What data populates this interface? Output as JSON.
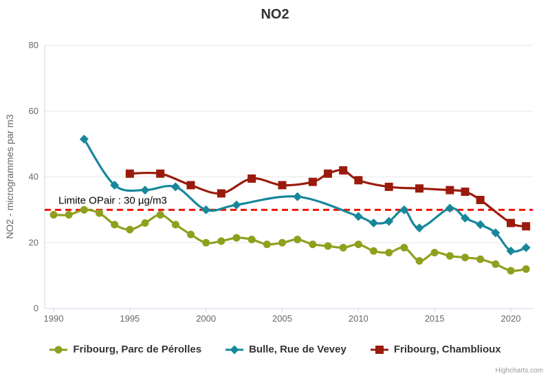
{
  "credits": "Highcharts.com",
  "chart_data": {
    "type": "line",
    "title": "NO2",
    "xlabel": "",
    "ylabel": "NO2 - microgrammes par m3",
    "ylim": [
      0,
      80
    ],
    "yticks": [
      0,
      20,
      40,
      60,
      80
    ],
    "xticks": [
      1990,
      1995,
      2000,
      2005,
      2010,
      2015,
      2020
    ],
    "x_range": [
      1990,
      2021
    ],
    "grid": true,
    "legend_position": "bottom",
    "grid_color": "#e6e6e6",
    "axis_color": "#ccd6eb",
    "label_color": "#666666",
    "plot_line": {
      "value": 30,
      "label": "Limite OPair : 30 µg/m3",
      "color": "#ee1407",
      "label_color": "#000000"
    },
    "series": [
      {
        "name": "Fribourg, Parc de Pérolles",
        "color": "#8fa01e",
        "marker": "circle",
        "points": [
          [
            1990,
            28.5
          ],
          [
            1991,
            28.5
          ],
          [
            1992,
            30
          ],
          [
            1993,
            29
          ],
          [
            1994,
            25.5
          ],
          [
            1995,
            24
          ],
          [
            1996,
            26
          ],
          [
            1997,
            28.5
          ],
          [
            1998,
            25.5
          ],
          [
            1999,
            22.5
          ],
          [
            2000,
            20
          ],
          [
            2001,
            20.5
          ],
          [
            2002,
            21.5
          ],
          [
            2003,
            21
          ],
          [
            2004,
            19.5
          ],
          [
            2005,
            20
          ],
          [
            2006,
            21
          ],
          [
            2007,
            19.5
          ],
          [
            2008,
            19
          ],
          [
            2009,
            18.5
          ],
          [
            2010,
            19.5
          ],
          [
            2011,
            17.5
          ],
          [
            2012,
            17
          ],
          [
            2013,
            18.5
          ],
          [
            2014,
            14.5
          ],
          [
            2015,
            17
          ],
          [
            2016,
            16
          ],
          [
            2017,
            15.5
          ],
          [
            2018,
            15
          ],
          [
            2019,
            13.5
          ],
          [
            2020,
            11.5
          ],
          [
            2021,
            12
          ]
        ]
      },
      {
        "name": "Bulle, Rue de Vevey",
        "color": "#17879b",
        "marker": "diamond",
        "points": [
          [
            1992,
            51.5
          ],
          [
            1994,
            37.5
          ],
          [
            1996,
            36
          ],
          [
            1998,
            37
          ],
          [
            2000,
            30
          ],
          [
            2002,
            31.5
          ],
          [
            2006,
            34
          ],
          [
            2010,
            28
          ],
          [
            2011,
            26
          ],
          [
            2012,
            26.5
          ],
          [
            2013,
            30
          ],
          [
            2014,
            24.5
          ],
          [
            2016,
            30.5
          ],
          [
            2017,
            27.5
          ],
          [
            2018,
            25.5
          ],
          [
            2019,
            23
          ],
          [
            2020,
            17.5
          ],
          [
            2021,
            18.5
          ]
        ]
      },
      {
        "name": "Fribourg, Chamblioux",
        "color": "#9a1b0c",
        "marker": "square",
        "points": [
          [
            1995,
            41
          ],
          [
            1997,
            41
          ],
          [
            1999,
            37.5
          ],
          [
            2001,
            35
          ],
          [
            2003,
            39.5
          ],
          [
            2005,
            37.5
          ],
          [
            2007,
            38.5
          ],
          [
            2008,
            41
          ],
          [
            2009,
            42
          ],
          [
            2010,
            39
          ],
          [
            2012,
            37
          ],
          [
            2014,
            36.5
          ],
          [
            2016,
            36
          ],
          [
            2017,
            35.5
          ],
          [
            2018,
            33
          ],
          [
            2020,
            26
          ],
          [
            2021,
            25
          ]
        ]
      }
    ]
  }
}
